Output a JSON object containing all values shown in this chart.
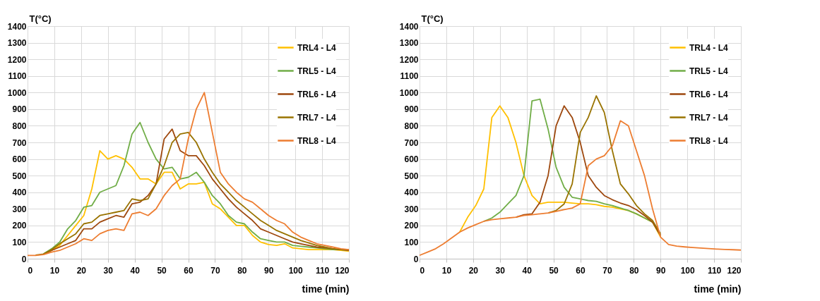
{
  "chart_data": [
    {
      "type": "line",
      "ylabel": "T(°C)",
      "xlabel": "time (min)",
      "xlim": [
        0,
        120
      ],
      "xticks": [
        0,
        10,
        20,
        30,
        40,
        50,
        60,
        70,
        80,
        90,
        100,
        110,
        120
      ],
      "ylim": [
        0,
        1400
      ],
      "yticks": [
        0,
        100,
        200,
        300,
        400,
        500,
        600,
        700,
        800,
        900,
        1000,
        1100,
        1200,
        1300,
        1400
      ],
      "grid": true,
      "legend": "top right",
      "line_style": "solid",
      "x": [
        0,
        3,
        6,
        9,
        12,
        15,
        18,
        21,
        24,
        27,
        30,
        33,
        36,
        39,
        42,
        45,
        48,
        51,
        54,
        57,
        60,
        63,
        66,
        69,
        72,
        75,
        78,
        81,
        84,
        87,
        90,
        93,
        96,
        99,
        102,
        105,
        108,
        111,
        114,
        117,
        120
      ],
      "series": [
        {
          "name": "TRL4 - L4",
          "color": "#ffc000",
          "values": [
            null,
            null,
            28,
            50,
            80,
            140,
            200,
            260,
            420,
            650,
            600,
            620,
            600,
            550,
            480,
            480,
            450,
            520,
            520,
            420,
            450,
            450,
            460,
            330,
            300,
            250,
            200,
            200,
            140,
            100,
            85,
            80,
            90,
            65,
            60,
            55,
            55,
            55,
            55,
            50,
            45
          ]
        },
        {
          "name": "TRL5 - L4",
          "color": "#70ad47",
          "values": [
            null,
            null,
            30,
            60,
            100,
            180,
            230,
            310,
            320,
            400,
            420,
            440,
            560,
            750,
            820,
            700,
            600,
            540,
            550,
            480,
            490,
            520,
            460,
            380,
            330,
            260,
            220,
            210,
            160,
            120,
            110,
            100,
            100,
            80,
            75,
            70,
            65,
            60,
            55,
            55,
            50
          ]
        },
        {
          "name": "TRL6 - L4",
          "color": "#9e480e",
          "values": [
            null,
            null,
            28,
            50,
            70,
            90,
            110,
            180,
            180,
            220,
            240,
            260,
            250,
            330,
            340,
            380,
            450,
            720,
            780,
            650,
            620,
            620,
            560,
            480,
            420,
            360,
            310,
            270,
            230,
            180,
            160,
            140,
            120,
            100,
            90,
            80,
            70,
            65,
            60,
            55,
            50
          ]
        },
        {
          "name": "TRL7 - L4",
          "color": "#997300",
          "values": [
            null,
            22,
            28,
            55,
            90,
            120,
            150,
            210,
            220,
            260,
            270,
            280,
            290,
            360,
            350,
            360,
            450,
            560,
            700,
            750,
            760,
            700,
            600,
            520,
            450,
            400,
            350,
            310,
            270,
            230,
            200,
            170,
            150,
            130,
            110,
            95,
            80,
            70,
            60,
            55,
            55
          ]
        },
        {
          "name": "TRL8 - L4",
          "color": "#ed7d31",
          "values": [
            20,
            20,
            25,
            40,
            50,
            70,
            90,
            120,
            110,
            150,
            170,
            180,
            170,
            270,
            280,
            260,
            300,
            380,
            440,
            480,
            720,
            900,
            1000,
            760,
            520,
            450,
            400,
            360,
            340,
            300,
            260,
            230,
            210,
            160,
            130,
            110,
            90,
            80,
            70,
            60,
            55
          ]
        }
      ]
    },
    {
      "type": "line",
      "ylabel": "T(°C)",
      "xlabel": "time (min)",
      "xlim": [
        0,
        120
      ],
      "xticks": [
        0,
        10,
        20,
        30,
        40,
        50,
        60,
        70,
        80,
        90,
        100,
        110,
        120
      ],
      "ylim": [
        0,
        1400
      ],
      "yticks": [
        0,
        100,
        200,
        300,
        400,
        500,
        600,
        700,
        800,
        900,
        1000,
        1100,
        1200,
        1300,
        1400
      ],
      "grid": true,
      "legend": "top right",
      "line_style": "solid",
      "x": [
        0,
        3,
        6,
        9,
        12,
        15,
        18,
        21,
        24,
        27,
        30,
        33,
        36,
        39,
        42,
        45,
        48,
        51,
        54,
        57,
        60,
        63,
        66,
        69,
        72,
        75,
        78,
        81,
        84,
        87,
        90,
        93,
        96,
        99,
        102,
        105,
        108,
        111,
        114,
        117,
        120
      ],
      "series": [
        {
          "name": "TRL4 - L4",
          "color": "#ffc000",
          "values": [
            null,
            null,
            null,
            null,
            null,
            160,
            250,
            320,
            420,
            850,
            920,
            850,
            700,
            500,
            380,
            330,
            340,
            340,
            340,
            335,
            330,
            330,
            325,
            315,
            310,
            300,
            290,
            270,
            245,
            220,
            130,
            null,
            null,
            null,
            null,
            null,
            null,
            null,
            null,
            null,
            null
          ]
        },
        {
          "name": "TRL5 - L4",
          "color": "#70ad47",
          "values": [
            null,
            null,
            null,
            null,
            null,
            null,
            null,
            null,
            225,
            245,
            280,
            330,
            380,
            500,
            950,
            960,
            780,
            550,
            430,
            370,
            360,
            350,
            345,
            330,
            320,
            305,
            290,
            270,
            245,
            220,
            140,
            null,
            null,
            null,
            null,
            null,
            null,
            null,
            null,
            null,
            null
          ]
        },
        {
          "name": "TRL6 - L4",
          "color": "#9e480e",
          "values": [
            null,
            null,
            null,
            null,
            null,
            null,
            null,
            null,
            null,
            null,
            null,
            null,
            250,
            265,
            270,
            340,
            500,
            800,
            920,
            850,
            700,
            500,
            430,
            380,
            355,
            335,
            320,
            295,
            260,
            220,
            140,
            null,
            null,
            null,
            null,
            null,
            null,
            null,
            null,
            null,
            null
          ]
        },
        {
          "name": "TRL7 - L4",
          "color": "#997300",
          "values": [
            null,
            null,
            null,
            null,
            null,
            null,
            null,
            null,
            null,
            null,
            null,
            null,
            null,
            null,
            null,
            null,
            275,
            290,
            330,
            450,
            760,
            850,
            980,
            880,
            650,
            450,
            390,
            320,
            270,
            230,
            150,
            null,
            null,
            null,
            null,
            null,
            null,
            null,
            null,
            null,
            null
          ]
        },
        {
          "name": "TRL8 - L4",
          "color": "#ed7d31",
          "values": [
            20,
            40,
            60,
            90,
            125,
            160,
            185,
            205,
            225,
            235,
            240,
            245,
            250,
            260,
            265,
            270,
            275,
            285,
            295,
            305,
            330,
            560,
            600,
            620,
            680,
            830,
            800,
            650,
            500,
            300,
            130,
            85,
            76,
            71,
            67,
            64,
            61,
            58,
            56,
            54,
            52
          ]
        }
      ]
    }
  ]
}
